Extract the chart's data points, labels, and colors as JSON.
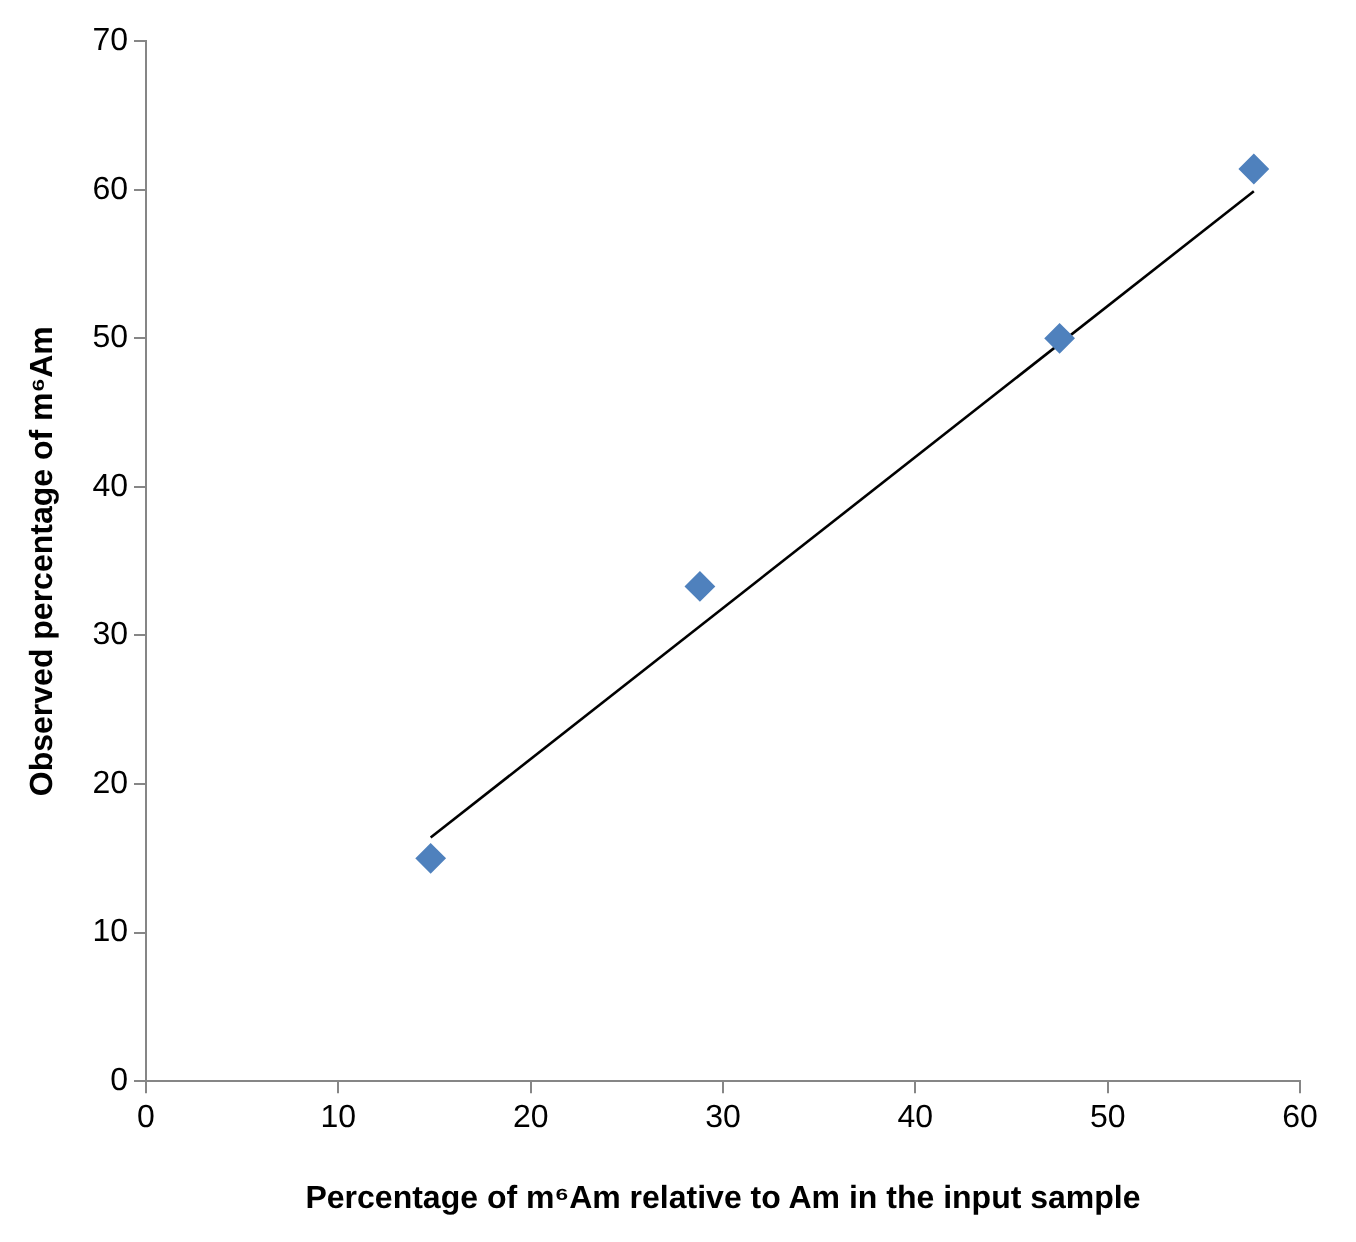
{
  "chart_data": {
    "type": "scatter",
    "xlabel": "Percentage of m⁶Am relative to Am in the input sample",
    "ylabel": "Observed percentage of m⁶Am",
    "legend": false,
    "series": [
      {
        "color": "#4f81bd",
        "marker": "diamond",
        "x": [
          14.8,
          28.8,
          47.5,
          57.6
        ],
        "values": [
          15,
          33.3,
          50,
          61.4
        ]
      },
      {
        "type": "line",
        "marker": "none",
        "color": "#000000",
        "x": [
          14.8,
          57.6
        ],
        "values": [
          16.4,
          59.9
        ]
      }
    ],
    "xlim": [
      0,
      60
    ],
    "xticks": [
      0,
      10,
      20,
      30,
      40,
      50,
      60
    ],
    "ylim": [
      0,
      70
    ],
    "yticks": [
      0,
      10,
      20,
      30,
      40,
      50,
      60,
      70
    ]
  }
}
